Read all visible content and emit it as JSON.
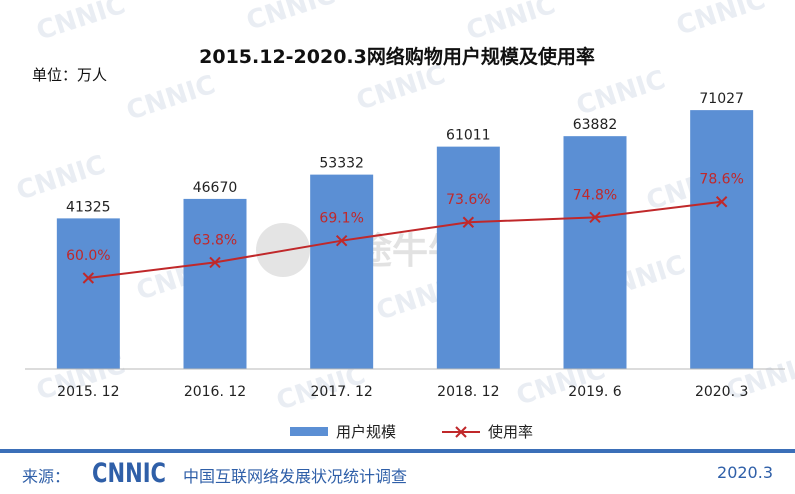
{
  "chart_data": {
    "type": "bar+line",
    "title": "2015.12-2020.3网络购物用户规模及使用率",
    "unit_label": "单位：万人",
    "categories": [
      "2015. 12",
      "2016. 12",
      "2017. 12",
      "2018. 12",
      "2019. 6",
      "2020. 3"
    ],
    "series": [
      {
        "name": "用户规模",
        "type": "bar",
        "values": [
          41325,
          46670,
          53332,
          61011,
          63882,
          71027
        ],
        "color": "#5b8fd4"
      },
      {
        "name": "使用率",
        "type": "line",
        "values": [
          60.0,
          63.8,
          69.1,
          73.6,
          74.8,
          78.6
        ],
        "value_labels": [
          "60.0%",
          "63.8%",
          "69.1%",
          "73.6%",
          "74.8%",
          "78.6%"
        ],
        "color": "#c0282a",
        "marker": "x"
      }
    ],
    "bar_ylim": [
      0,
      76000
    ],
    "line_ylim": [
      40,
      100
    ],
    "grid": false,
    "legend_position": "bottom"
  },
  "watermark": {
    "repeated_text": "CNNIC",
    "center_logo_text": "富途牛牛"
  },
  "footer": {
    "source_label": "来源：",
    "logo_text": "CNNIC",
    "organization": "中国互联网络发展状况统计调查",
    "date": "2020.3"
  },
  "colors": {
    "bar": "#5b8fd4",
    "line": "#c0282a",
    "footer_text": "#2f5fa8",
    "footer_rule": "#3b6fb8"
  }
}
